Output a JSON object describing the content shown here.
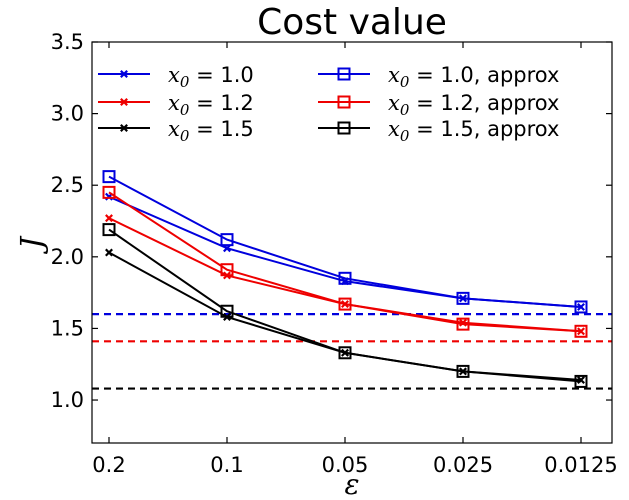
{
  "chart_data": {
    "type": "line",
    "title": "Cost value",
    "xlabel": "ε",
    "ylabel": "J",
    "categories": [
      "0.2",
      "0.1",
      "0.05",
      "0.025",
      "0.0125"
    ],
    "ylim": [
      0.7,
      3.5
    ],
    "yticks": [
      "1.0",
      "1.5",
      "2.0",
      "2.5",
      "3.0",
      "3.5"
    ],
    "grid": false,
    "legend_position": "top",
    "series": [
      {
        "name": "x0 = 1.0",
        "label_var": "x",
        "label_sub": "0",
        "label_rest": " = 1.0",
        "color": "#0000dd",
        "marker": "x",
        "values": [
          2.42,
          2.06,
          1.83,
          1.71,
          1.65
        ]
      },
      {
        "name": "x0 = 1.2",
        "label_var": "x",
        "label_sub": "0",
        "label_rest": " = 1.2",
        "color": "#ee0000",
        "marker": "x",
        "values": [
          2.27,
          1.87,
          1.67,
          1.54,
          1.48
        ]
      },
      {
        "name": "x0 = 1.5",
        "label_var": "x",
        "label_sub": "0",
        "label_rest": " = 1.5",
        "color": "#000000",
        "marker": "x",
        "values": [
          2.03,
          1.58,
          1.33,
          1.2,
          1.14
        ]
      },
      {
        "name": "x0 = 1.0, approx",
        "label_var": "x",
        "label_sub": "0",
        "label_rest": " = 1.0, approx",
        "color": "#0000dd",
        "marker": "square",
        "values": [
          2.56,
          2.12,
          1.85,
          1.71,
          1.65
        ]
      },
      {
        "name": "x0 = 1.2, approx",
        "label_var": "x",
        "label_sub": "0",
        "label_rest": " = 1.2, approx",
        "color": "#ee0000",
        "marker": "square",
        "values": [
          2.45,
          1.91,
          1.67,
          1.53,
          1.48
        ]
      },
      {
        "name": "x0 = 1.5, approx",
        "label_var": "x",
        "label_sub": "0",
        "label_rest": " = 1.5, approx",
        "color": "#000000",
        "marker": "square",
        "values": [
          2.19,
          1.62,
          1.33,
          1.2,
          1.13
        ]
      }
    ],
    "reference_lines": [
      {
        "value": 1.6,
        "color": "#0000dd",
        "style": "dashed"
      },
      {
        "value": 1.41,
        "color": "#ee0000",
        "style": "dashed"
      },
      {
        "value": 1.08,
        "color": "#000000",
        "style": "dashed"
      }
    ]
  }
}
